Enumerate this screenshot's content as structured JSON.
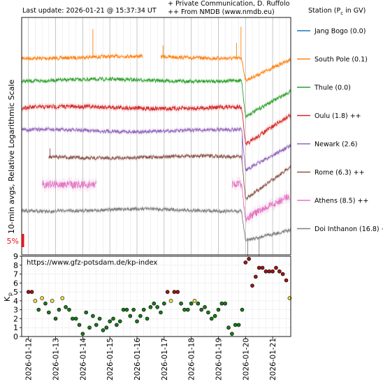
{
  "header": {
    "last_update": "Last update: 2026-01-21 @ 15:37:34 UT",
    "credit_line1": "+ Private Communication, D. Ruffolo",
    "credit_line2": "++ From NMDB (www.nmdb.eu)",
    "legend_title": "Station (P",
    "legend_title_sub": "c",
    "legend_title_tail": " in GV)"
  },
  "chart_data": [
    {
      "type": "line",
      "ylabel": "10-min avgs, Relative Logarithmic Scale",
      "scale_marker": "5%",
      "x_range": [
        "2026-01-11 18:00",
        "2026-01-21 16:00"
      ],
      "event": {
        "decrease_onset": "2026-01-19 20:30",
        "minimum": "2026-01-20 00:00"
      },
      "series": [
        {
          "name": "Jang Bogo (0.0)",
          "color": "#1f77b4",
          "visible_data": false
        },
        {
          "name": "South Pole (0.1)",
          "color": "#ff7f0e",
          "visible_data": true,
          "gap": [
            "2026-01-16 05:00",
            "2026-01-16 21:00"
          ]
        },
        {
          "name": "Thule (0.0)",
          "color": "#2ca02c",
          "visible_data": true
        },
        {
          "name": "Oulu (1.8) ++",
          "color": "#d62728",
          "visible_data": true
        },
        {
          "name": "Newark (2.6)",
          "color": "#9467bd",
          "visible_data": true
        },
        {
          "name": "Rome (6.3) ++",
          "color": "#8c564b",
          "visible_data": true,
          "start": "2026-01-12 18:00"
        },
        {
          "name": "Athens (8.5) ++",
          "color": "#e377c2",
          "visible_data": true,
          "segments": [
            [
              "2026-01-12 12:00",
              "2026-01-14 12:00"
            ],
            [
              "2026-01-19 12:00",
              "2026-01-21 15:00"
            ]
          ]
        },
        {
          "name": "Doi Inthanon (16.8) +",
          "color": "#7f7f7f",
          "visible_data": true
        }
      ]
    },
    {
      "type": "scatter",
      "title": "https://www.gfz-potsdam.de/kp-index",
      "ylabel": "K",
      "ylabel_sub": "p",
      "ylim": [
        0,
        9
      ],
      "yticks": [
        0,
        1,
        2,
        3,
        4,
        5,
        6,
        7,
        8,
        9
      ],
      "xticks": [
        "2026-01-12",
        "2026-01-13",
        "2026-01-14",
        "2026-01-15",
        "2026-01-16",
        "2026-01-17",
        "2026-01-18",
        "2026-01-19",
        "2026-01-20",
        "2026-01-21"
      ],
      "color_bins": {
        "below_4": "#1a7a1a",
        "4_to_5": "#f0e040",
        "5_and_above": "#a01515"
      },
      "points": [
        {
          "t": "2026-01-12 00:00",
          "kp": 5.0
        },
        {
          "t": "2026-01-12 03:00",
          "kp": 5.0
        },
        {
          "t": "2026-01-12 06:00",
          "kp": 4.0
        },
        {
          "t": "2026-01-12 09:00",
          "kp": 3.0
        },
        {
          "t": "2026-01-12 12:00",
          "kp": 4.3
        },
        {
          "t": "2026-01-12 15:00",
          "kp": 3.7
        },
        {
          "t": "2026-01-12 18:00",
          "kp": 2.7
        },
        {
          "t": "2026-01-12 21:00",
          "kp": 4.0
        },
        {
          "t": "2026-01-13 00:00",
          "kp": 2.0
        },
        {
          "t": "2026-01-13 03:00",
          "kp": 3.0
        },
        {
          "t": "2026-01-13 06:00",
          "kp": 4.3
        },
        {
          "t": "2026-01-13 09:00",
          "kp": 3.3
        },
        {
          "t": "2026-01-13 12:00",
          "kp": 3.0
        },
        {
          "t": "2026-01-13 15:00",
          "kp": 2.0
        },
        {
          "t": "2026-01-13 18:00",
          "kp": 2.0
        },
        {
          "t": "2026-01-13 21:00",
          "kp": 1.3
        },
        {
          "t": "2026-01-14 00:00",
          "kp": 0.3
        },
        {
          "t": "2026-01-14 03:00",
          "kp": 2.7
        },
        {
          "t": "2026-01-14 06:00",
          "kp": 1.0
        },
        {
          "t": "2026-01-14 09:00",
          "kp": 2.3
        },
        {
          "t": "2026-01-14 12:00",
          "kp": 1.3
        },
        {
          "t": "2026-01-14 15:00",
          "kp": 2.0
        },
        {
          "t": "2026-01-14 18:00",
          "kp": 0.7
        },
        {
          "t": "2026-01-14 21:00",
          "kp": 1.0
        },
        {
          "t": "2026-01-15 00:00",
          "kp": 1.7
        },
        {
          "t": "2026-01-15 03:00",
          "kp": 2.0
        },
        {
          "t": "2026-01-15 06:00",
          "kp": 1.3
        },
        {
          "t": "2026-01-15 09:00",
          "kp": 1.7
        },
        {
          "t": "2026-01-15 12:00",
          "kp": 3.0
        },
        {
          "t": "2026-01-15 15:00",
          "kp": 3.0
        },
        {
          "t": "2026-01-15 18:00",
          "kp": 2.3
        },
        {
          "t": "2026-01-15 21:00",
          "kp": 3.0
        },
        {
          "t": "2026-01-16 00:00",
          "kp": 1.7
        },
        {
          "t": "2026-01-16 03:00",
          "kp": 2.3
        },
        {
          "t": "2026-01-16 06:00",
          "kp": 3.0
        },
        {
          "t": "2026-01-16 09:00",
          "kp": 2.0
        },
        {
          "t": "2026-01-16 12:00",
          "kp": 3.3
        },
        {
          "t": "2026-01-16 15:00",
          "kp": 3.7
        },
        {
          "t": "2026-01-16 18:00",
          "kp": 3.3
        },
        {
          "t": "2026-01-16 21:00",
          "kp": 2.7
        },
        {
          "t": "2026-01-17 00:00",
          "kp": 3.7
        },
        {
          "t": "2026-01-17 03:00",
          "kp": 5.0
        },
        {
          "t": "2026-01-17 06:00",
          "kp": 4.0
        },
        {
          "t": "2026-01-17 09:00",
          "kp": 5.0
        },
        {
          "t": "2026-01-17 12:00",
          "kp": 5.0
        },
        {
          "t": "2026-01-17 15:00",
          "kp": 3.7
        },
        {
          "t": "2026-01-17 18:00",
          "kp": 3.0
        },
        {
          "t": "2026-01-17 21:00",
          "kp": 3.0
        },
        {
          "t": "2026-01-18 00:00",
          "kp": 3.7
        },
        {
          "t": "2026-01-18 03:00",
          "kp": 4.0
        },
        {
          "t": "2026-01-18 06:00",
          "kp": 3.7
        },
        {
          "t": "2026-01-18 09:00",
          "kp": 3.0
        },
        {
          "t": "2026-01-18 12:00",
          "kp": 3.3
        },
        {
          "t": "2026-01-18 15:00",
          "kp": 2.7
        },
        {
          "t": "2026-01-18 18:00",
          "kp": 2.0
        },
        {
          "t": "2026-01-18 21:00",
          "kp": 2.3
        },
        {
          "t": "2026-01-19 00:00",
          "kp": 3.0
        },
        {
          "t": "2026-01-19 03:00",
          "kp": 3.7
        },
        {
          "t": "2026-01-19 06:00",
          "kp": 3.7
        },
        {
          "t": "2026-01-19 09:00",
          "kp": 1.0
        },
        {
          "t": "2026-01-19 12:00",
          "kp": 0.3
        },
        {
          "t": "2026-01-19 15:00",
          "kp": 1.3
        },
        {
          "t": "2026-01-19 18:00",
          "kp": 1.3
        },
        {
          "t": "2026-01-19 21:00",
          "kp": 3.0
        },
        {
          "t": "2026-01-20 00:00",
          "kp": 8.3
        },
        {
          "t": "2026-01-20 03:00",
          "kp": 8.7
        },
        {
          "t": "2026-01-20 06:00",
          "kp": 5.7
        },
        {
          "t": "2026-01-20 09:00",
          "kp": 6.7
        },
        {
          "t": "2026-01-20 12:00",
          "kp": 7.7
        },
        {
          "t": "2026-01-20 15:00",
          "kp": 7.7
        },
        {
          "t": "2026-01-20 18:00",
          "kp": 7.3
        },
        {
          "t": "2026-01-20 21:00",
          "kp": 7.3
        },
        {
          "t": "2026-01-21 00:00",
          "kp": 7.3
        },
        {
          "t": "2026-01-21 03:00",
          "kp": 7.7
        },
        {
          "t": "2026-01-21 06:00",
          "kp": 7.3
        },
        {
          "t": "2026-01-21 09:00",
          "kp": 7.0
        },
        {
          "t": "2026-01-21 12:00",
          "kp": 6.3
        },
        {
          "t": "2026-01-21 15:00",
          "kp": 4.3
        }
      ]
    }
  ]
}
